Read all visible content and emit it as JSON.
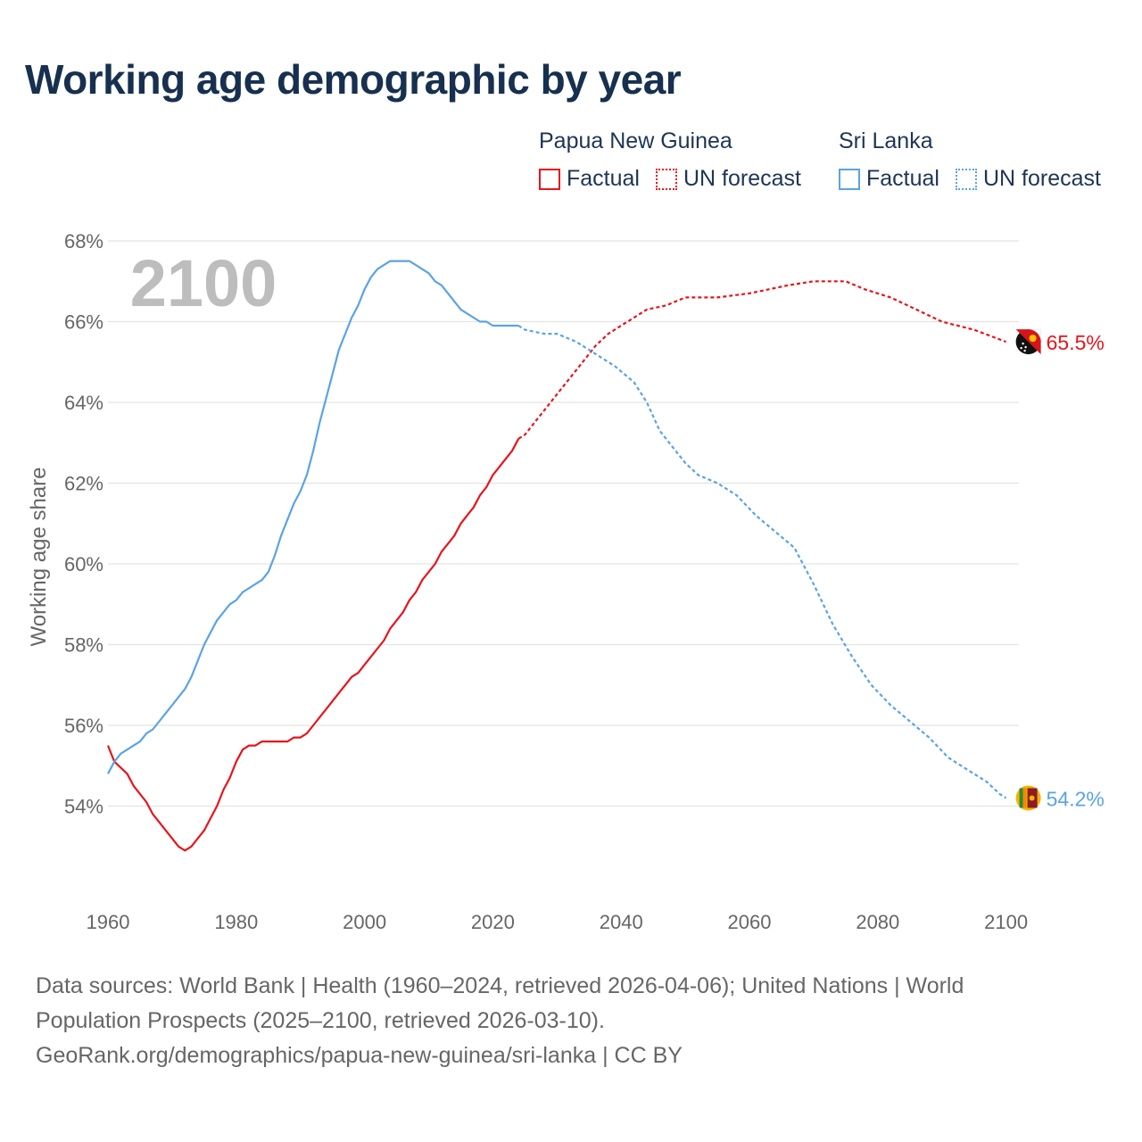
{
  "title": "Working age demographic by year",
  "legend": {
    "groups": [
      {
        "name": "Papua New Guinea",
        "factual_label": "Factual",
        "forecast_label": "UN forecast",
        "color": "#e8141b"
      },
      {
        "name": "Sri Lanka",
        "factual_label": "Factual",
        "forecast_label": "UN forecast",
        "color": "#5aa3e4"
      }
    ]
  },
  "year_watermark": "2100",
  "footer": {
    "line1": "Data sources: World Bank | Health (1960–2024, retrieved 2026-04-06); United Nations | World",
    "line2": "Population Prospects (2025–2100, retrieved 2026-03-10).",
    "line3": "GeoRank.org/demographics/papua-new-guinea/sri-lanka | CC BY"
  },
  "chart_data": {
    "type": "line",
    "ylabel": "Working age share",
    "xlabel": "",
    "xlim": [
      1960,
      2102
    ],
    "ylim": [
      52,
      68
    ],
    "x_ticks": [
      1960,
      1980,
      2000,
      2020,
      2040,
      2060,
      2080,
      2100
    ],
    "y_ticks": [
      54,
      56,
      58,
      60,
      62,
      64,
      66,
      68
    ],
    "y_tick_suffix": "%",
    "factual_end_year": 2024,
    "series": [
      {
        "name": "Papua New Guinea",
        "color": "#e8141b",
        "end_label": "65.5%",
        "points": [
          [
            1960,
            55.5
          ],
          [
            1961,
            55.1
          ],
          [
            1963,
            54.8
          ],
          [
            1964,
            54.5
          ],
          [
            1966,
            54.1
          ],
          [
            1967,
            53.8
          ],
          [
            1968,
            53.6
          ],
          [
            1969,
            53.4
          ],
          [
            1970,
            53.2
          ],
          [
            1971,
            53.0
          ],
          [
            1972,
            52.9
          ],
          [
            1973,
            53.0
          ],
          [
            1974,
            53.2
          ],
          [
            1975,
            53.4
          ],
          [
            1976,
            53.7
          ],
          [
            1977,
            54.0
          ],
          [
            1978,
            54.4
          ],
          [
            1979,
            54.7
          ],
          [
            1980,
            55.1
          ],
          [
            1981,
            55.4
          ],
          [
            1982,
            55.5
          ],
          [
            1983,
            55.5
          ],
          [
            1984,
            55.6
          ],
          [
            1985,
            55.6
          ],
          [
            1986,
            55.6
          ],
          [
            1987,
            55.6
          ],
          [
            1988,
            55.6
          ],
          [
            1989,
            55.7
          ],
          [
            1990,
            55.7
          ],
          [
            1991,
            55.8
          ],
          [
            1992,
            56.0
          ],
          [
            1993,
            56.2
          ],
          [
            1994,
            56.4
          ],
          [
            1995,
            56.6
          ],
          [
            1996,
            56.8
          ],
          [
            1997,
            57.0
          ],
          [
            1998,
            57.2
          ],
          [
            1999,
            57.3
          ],
          [
            2000,
            57.5
          ],
          [
            2001,
            57.7
          ],
          [
            2002,
            57.9
          ],
          [
            2003,
            58.1
          ],
          [
            2004,
            58.4
          ],
          [
            2005,
            58.6
          ],
          [
            2006,
            58.8
          ],
          [
            2007,
            59.1
          ],
          [
            2008,
            59.3
          ],
          [
            2009,
            59.6
          ],
          [
            2010,
            59.8
          ],
          [
            2011,
            60.0
          ],
          [
            2012,
            60.3
          ],
          [
            2013,
            60.5
          ],
          [
            2014,
            60.7
          ],
          [
            2015,
            61.0
          ],
          [
            2016,
            61.2
          ],
          [
            2017,
            61.4
          ],
          [
            2018,
            61.7
          ],
          [
            2019,
            61.9
          ],
          [
            2020,
            62.2
          ],
          [
            2021,
            62.4
          ],
          [
            2022,
            62.6
          ],
          [
            2023,
            62.8
          ],
          [
            2024,
            63.1
          ],
          [
            2025,
            63.2
          ],
          [
            2027,
            63.6
          ],
          [
            2030,
            64.2
          ],
          [
            2033,
            64.8
          ],
          [
            2036,
            65.4
          ],
          [
            2038,
            65.7
          ],
          [
            2040,
            65.9
          ],
          [
            2042,
            66.1
          ],
          [
            2044,
            66.3
          ],
          [
            2047,
            66.4
          ],
          [
            2050,
            66.6
          ],
          [
            2055,
            66.6
          ],
          [
            2060,
            66.7
          ],
          [
            2063,
            66.8
          ],
          [
            2066,
            66.9
          ],
          [
            2070,
            67.0
          ],
          [
            2075,
            67.0
          ],
          [
            2078,
            66.8
          ],
          [
            2082,
            66.6
          ],
          [
            2086,
            66.3
          ],
          [
            2090,
            66.0
          ],
          [
            2095,
            65.8
          ],
          [
            2100,
            65.5
          ]
        ]
      },
      {
        "name": "Sri Lanka",
        "color": "#5aa3e4",
        "end_label": "54.2%",
        "points": [
          [
            1960,
            54.8
          ],
          [
            1961,
            55.1
          ],
          [
            1962,
            55.3
          ],
          [
            1963,
            55.4
          ],
          [
            1964,
            55.5
          ],
          [
            1965,
            55.6
          ],
          [
            1966,
            55.8
          ],
          [
            1967,
            55.9
          ],
          [
            1968,
            56.1
          ],
          [
            1969,
            56.3
          ],
          [
            1970,
            56.5
          ],
          [
            1971,
            56.7
          ],
          [
            1972,
            56.9
          ],
          [
            1973,
            57.2
          ],
          [
            1974,
            57.6
          ],
          [
            1975,
            58.0
          ],
          [
            1976,
            58.3
          ],
          [
            1977,
            58.6
          ],
          [
            1978,
            58.8
          ],
          [
            1979,
            59.0
          ],
          [
            1980,
            59.1
          ],
          [
            1981,
            59.3
          ],
          [
            1982,
            59.4
          ],
          [
            1983,
            59.5
          ],
          [
            1984,
            59.6
          ],
          [
            1985,
            59.8
          ],
          [
            1986,
            60.2
          ],
          [
            1987,
            60.7
          ],
          [
            1988,
            61.1
          ],
          [
            1989,
            61.5
          ],
          [
            1990,
            61.8
          ],
          [
            1991,
            62.2
          ],
          [
            1992,
            62.8
          ],
          [
            1993,
            63.5
          ],
          [
            1994,
            64.1
          ],
          [
            1995,
            64.7
          ],
          [
            1996,
            65.3
          ],
          [
            1997,
            65.7
          ],
          [
            1998,
            66.1
          ],
          [
            1999,
            66.4
          ],
          [
            2000,
            66.8
          ],
          [
            2001,
            67.1
          ],
          [
            2002,
            67.3
          ],
          [
            2003,
            67.4
          ],
          [
            2004,
            67.5
          ],
          [
            2005,
            67.5
          ],
          [
            2006,
            67.5
          ],
          [
            2007,
            67.5
          ],
          [
            2008,
            67.4
          ],
          [
            2009,
            67.3
          ],
          [
            2010,
            67.2
          ],
          [
            2011,
            67.0
          ],
          [
            2012,
            66.9
          ],
          [
            2013,
            66.7
          ],
          [
            2014,
            66.5
          ],
          [
            2015,
            66.3
          ],
          [
            2016,
            66.2
          ],
          [
            2017,
            66.1
          ],
          [
            2018,
            66.0
          ],
          [
            2019,
            66.0
          ],
          [
            2020,
            65.9
          ],
          [
            2021,
            65.9
          ],
          [
            2022,
            65.9
          ],
          [
            2023,
            65.9
          ],
          [
            2024,
            65.9
          ],
          [
            2025,
            65.8
          ],
          [
            2028,
            65.7
          ],
          [
            2030,
            65.7
          ],
          [
            2033,
            65.5
          ],
          [
            2036,
            65.2
          ],
          [
            2039,
            64.9
          ],
          [
            2042,
            64.5
          ],
          [
            2044,
            64.0
          ],
          [
            2046,
            63.3
          ],
          [
            2048,
            62.9
          ],
          [
            2050,
            62.5
          ],
          [
            2052,
            62.2
          ],
          [
            2055,
            62.0
          ],
          [
            2058,
            61.7
          ],
          [
            2061,
            61.2
          ],
          [
            2064,
            60.8
          ],
          [
            2067,
            60.4
          ],
          [
            2070,
            59.5
          ],
          [
            2073,
            58.5
          ],
          [
            2076,
            57.7
          ],
          [
            2079,
            57.0
          ],
          [
            2082,
            56.5
          ],
          [
            2085,
            56.1
          ],
          [
            2088,
            55.7
          ],
          [
            2091,
            55.2
          ],
          [
            2094,
            54.9
          ],
          [
            2097,
            54.6
          ],
          [
            2099,
            54.3
          ],
          [
            2100,
            54.2
          ]
        ]
      }
    ]
  }
}
